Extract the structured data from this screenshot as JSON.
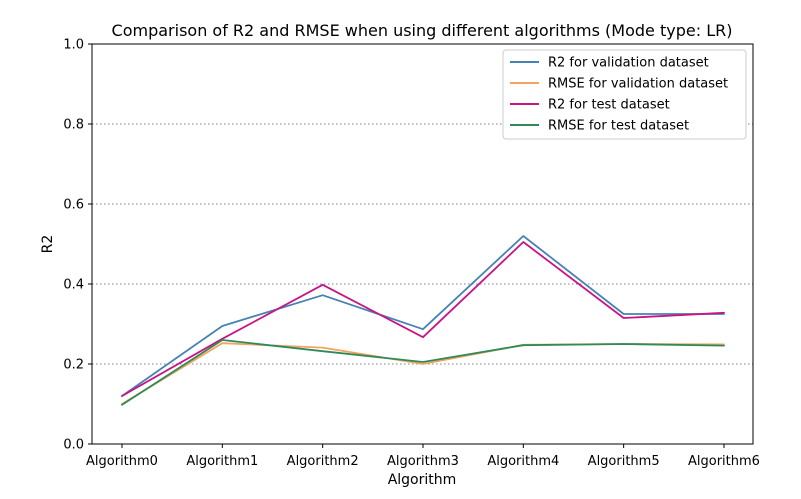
{
  "chart_data": {
    "type": "line",
    "title": "Comparison of R2 and RMSE when using different algorithms (Mode type: LR)",
    "xlabel": "Algorithm",
    "ylabel": "R2",
    "categories": [
      "Algorithm0",
      "Algorithm1",
      "Algorithm2",
      "Algorithm3",
      "Algorithm4",
      "Algorithm5",
      "Algorithm6"
    ],
    "ylim": [
      0,
      1
    ],
    "yticks": [
      0.0,
      0.2,
      0.4,
      0.6,
      0.8,
      1.0
    ],
    "ytick_labels": [
      "0.0",
      "0.2",
      "0.4",
      "0.6",
      "0.8",
      "1.0"
    ],
    "grid": {
      "y": true,
      "style": "dotted",
      "color": "#808080"
    },
    "legend": {
      "placement": "top-right"
    },
    "series": [
      {
        "name": "R2 for validation dataset",
        "color": "#4682B4",
        "values": [
          0.12,
          0.295,
          0.372,
          0.287,
          0.52,
          0.325,
          0.325
        ]
      },
      {
        "name": "RMSE for validation dataset",
        "color": "#F4A460",
        "values": [
          0.1,
          0.252,
          0.241,
          0.2,
          0.248,
          0.25,
          0.249
        ]
      },
      {
        "name": "R2 for test dataset",
        "color": "#C71585",
        "values": [
          0.12,
          0.263,
          0.398,
          0.267,
          0.505,
          0.315,
          0.328
        ]
      },
      {
        "name": "RMSE for test dataset",
        "color": "#2E8B57",
        "values": [
          0.098,
          0.26,
          0.232,
          0.205,
          0.247,
          0.25,
          0.246
        ]
      }
    ]
  }
}
